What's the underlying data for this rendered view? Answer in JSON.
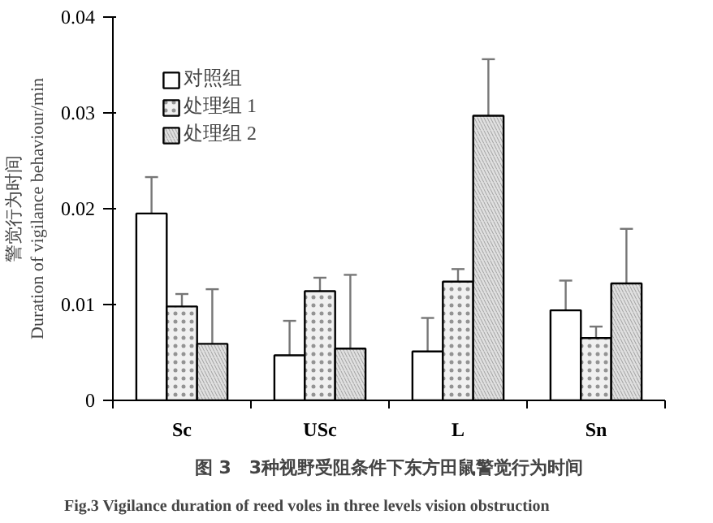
{
  "chart_data": {
    "type": "bar",
    "title": "图 3　3种视野受阻条件下东方田鼠警觉行为时间",
    "subtitle": "Fig.3  Vigilance duration of reed voles in three levels vision obstruction",
    "ylabel": "警觉行为时间\nDuration of vigilance behaviour/min",
    "categories": [
      "Sc",
      "USc",
      "L",
      "Sn"
    ],
    "series": [
      {
        "name": "对照组",
        "color": "#ffffff",
        "values": [
          0.0195,
          0.0047,
          0.0051,
          0.0094
        ],
        "errors": [
          [
            0.0195,
            0.0233
          ],
          [
            0.0047,
            0.0083
          ],
          [
            0.0051,
            0.0086
          ],
          [
            0.0094,
            0.0125
          ]
        ]
      },
      {
        "name": "处理组 1",
        "color": "#f0f0f0",
        "values": [
          0.0098,
          0.0114,
          0.0124,
          0.0065
        ],
        "errors": [
          [
            0.0098,
            0.0111
          ],
          [
            0.0114,
            0.0128
          ],
          [
            0.0124,
            0.0137
          ],
          [
            0.0065,
            0.0077
          ]
        ]
      },
      {
        "name": "处理组 2",
        "color": "#e0e0e0",
        "values": [
          0.0059,
          0.0054,
          0.0297,
          0.0122
        ],
        "errors": [
          [
            0.0059,
            0.0116
          ],
          [
            0.0054,
            0.0131
          ],
          [
            0.0297,
            0.0356
          ],
          [
            0.0122,
            0.0179
          ]
        ]
      }
    ],
    "ylim": [
      0,
      0.04
    ],
    "yticks": [
      0,
      0.01,
      0.02,
      0.03,
      0.04
    ],
    "grid": false,
    "legend": "top left"
  }
}
